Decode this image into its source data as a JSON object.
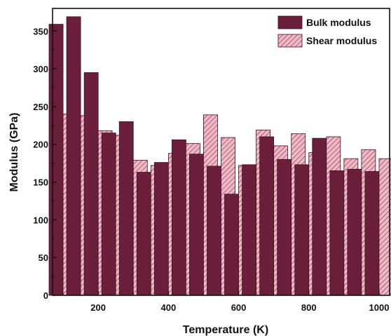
{
  "chart_data": {
    "type": "bar",
    "x": [
      100,
      150,
      200,
      250,
      300,
      350,
      400,
      450,
      500,
      550,
      600,
      650,
      700,
      750,
      800,
      850,
      900,
      950,
      1000
    ],
    "series": [
      {
        "name": "Bulk modulus",
        "color": "#6b1f3a",
        "pattern": "solid",
        "values": [
          359,
          369,
          295,
          215,
          230,
          163,
          176,
          206,
          187,
          171,
          134,
          173,
          210,
          180,
          173,
          208,
          165,
          167,
          164
        ]
      },
      {
        "name": "Shear modulus",
        "color": "#f0b8c4",
        "pattern": "hatched",
        "values": [
          240,
          238,
          218,
          212,
          179,
          172,
          188,
          201,
          239,
          209,
          172,
          219,
          198,
          214,
          189,
          210,
          181,
          193,
          181
        ]
      }
    ],
    "xlabel": "Temperature (K)",
    "ylabel": "Modulus (GPa)",
    "xlim": [
      70,
      1030
    ],
    "ylim": [
      0,
      380
    ],
    "x_ticks": [
      200,
      400,
      600,
      800,
      1000
    ],
    "x_tick_labels": [
      "200",
      "400",
      "600",
      "800",
      "1000"
    ],
    "y_ticks": [
      0,
      50,
      100,
      150,
      200,
      250,
      300,
      350
    ],
    "y_tick_labels": [
      "0",
      "50",
      "100",
      "150",
      "200",
      "250",
      "300",
      "350"
    ],
    "grid": false,
    "legend_position": "top-right"
  }
}
